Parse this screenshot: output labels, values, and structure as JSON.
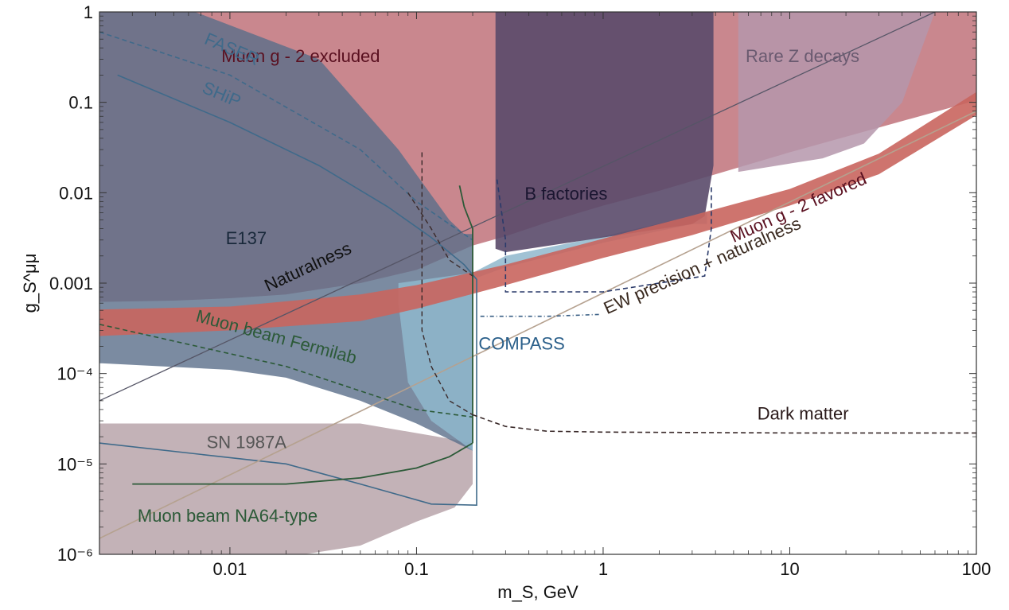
{
  "chart_data": {
    "type": "area",
    "title": "",
    "xlabel": "m_S, GeV",
    "ylabel": "g_S^μμ",
    "x_scale": "log",
    "y_scale": "log",
    "xlim": [
      0.002,
      100
    ],
    "ylim": [
      1e-06,
      1
    ],
    "grid": false,
    "x_ticks": [
      {
        "value": 0.01,
        "label": "0.01"
      },
      {
        "value": 0.1,
        "label": "0.1"
      },
      {
        "value": 1,
        "label": "1"
      },
      {
        "value": 10,
        "label": "10"
      },
      {
        "value": 100,
        "label": "100"
      }
    ],
    "y_ticks": [
      {
        "value": 1e-06,
        "label": "10⁻⁶"
      },
      {
        "value": 1e-05,
        "label": "10⁻⁵"
      },
      {
        "value": 0.0001,
        "label": "10⁻⁴"
      },
      {
        "value": 0.001,
        "label": "0.001"
      },
      {
        "value": 0.01,
        "label": "0.01"
      },
      {
        "value": 0.1,
        "label": "0.1"
      },
      {
        "value": 1,
        "label": "1"
      }
    ],
    "regions": [
      {
        "id": "sn1987a",
        "label": "SN 1987A",
        "color": "#b8a5aa",
        "opacity": 0.85,
        "points": [
          [
            0.002,
            2.8e-05
          ],
          [
            0.05,
            2.8e-05
          ],
          [
            0.13,
            2e-05
          ],
          [
            0.2,
            1.7e-05
          ],
          [
            0.2,
            6e-06
          ],
          [
            0.16,
            3.3e-06
          ],
          [
            0.1,
            2.3e-06
          ],
          [
            0.05,
            1.25e-06
          ],
          [
            0.025,
            1e-06
          ],
          [
            0.002,
            1e-06
          ]
        ]
      },
      {
        "id": "muon-g2-excluded",
        "label": "Muon g - 2 excluded",
        "color": "#c0727a",
        "opacity": 0.85,
        "points": [
          [
            0.002,
            1
          ],
          [
            100,
            1
          ],
          [
            100,
            0.105
          ],
          [
            40,
            0.062
          ],
          [
            10,
            0.028
          ],
          [
            4,
            0.016
          ],
          [
            2,
            0.0105
          ],
          [
            1,
            0.0072
          ],
          [
            0.5,
            0.0047
          ],
          [
            0.3,
            0.0033
          ],
          [
            0.2,
            0.0026
          ],
          [
            0.1,
            0.0014
          ],
          [
            0.05,
            0.001
          ],
          [
            0.02,
            0.00075
          ],
          [
            0.01,
            0.00068
          ],
          [
            0.005,
            0.00064
          ],
          [
            0.002,
            0.00062
          ]
        ]
      },
      {
        "id": "e137",
        "label": "E137",
        "color": "#5a6e8a",
        "opacity": 0.8,
        "points": [
          [
            0.002,
            1
          ],
          [
            0.0065,
            1
          ],
          [
            0.03,
            0.3
          ],
          [
            0.08,
            0.03
          ],
          [
            0.15,
            0.005
          ],
          [
            0.18,
            0.0035
          ],
          [
            0.2,
            0.0035
          ],
          [
            0.2,
            1.4e-05
          ],
          [
            0.1,
            2.8e-05
          ],
          [
            0.05,
            5e-05
          ],
          [
            0.02,
            9e-05
          ],
          [
            0.01,
            0.00011
          ],
          [
            0.002,
            0.00013
          ]
        ]
      },
      {
        "id": "compass-region",
        "label": "",
        "color": "#8fb7cc",
        "opacity": 0.85,
        "points": [
          [
            0.2,
            0.0013
          ],
          [
            0.3,
            0.002
          ],
          [
            1,
            0.0033
          ],
          [
            3,
            0.0055
          ],
          [
            3.6,
            0.006
          ],
          [
            3.6,
            0.0045
          ],
          [
            3,
            0.0045
          ],
          [
            1,
            0.0028
          ],
          [
            0.3,
            0.0015
          ],
          [
            0.2,
            0.0011
          ]
        ]
      },
      {
        "id": "compass-lower",
        "label": "",
        "color": "#8fb7cc",
        "opacity": 0.85,
        "points": [
          [
            0.08,
            0.001
          ],
          [
            0.2,
            0.0013
          ],
          [
            0.2,
            1.4e-05
          ],
          [
            0.12,
            3e-05
          ],
          [
            0.09,
            8e-05
          ],
          [
            0.08,
            0.0006
          ]
        ]
      },
      {
        "id": "b-factories",
        "label": "B factories",
        "color": "#5a4a6a",
        "opacity": 0.9,
        "points": [
          [
            0.265,
            1
          ],
          [
            3.9,
            1
          ],
          [
            3.9,
            0.02
          ],
          [
            3.5,
            0.0055
          ],
          [
            3,
            0.0045
          ],
          [
            1,
            0.0032
          ],
          [
            0.3,
            0.0022
          ],
          [
            0.265,
            0.0024
          ]
        ]
      },
      {
        "id": "rare-z",
        "label": "Rare Z decays",
        "color": "#b597ab",
        "opacity": 0.85,
        "points": [
          [
            5.3,
            1
          ],
          [
            60,
            1
          ],
          [
            40,
            0.1
          ],
          [
            25,
            0.035
          ],
          [
            15,
            0.024
          ],
          [
            5.3,
            0.017
          ]
        ]
      },
      {
        "id": "g2-favored",
        "label": "Muon g - 2 favored",
        "color": "#c9655e",
        "opacity": 0.9,
        "points": [
          [
            0.002,
            0.00051
          ],
          [
            0.01,
            0.00055
          ],
          [
            0.05,
            0.00075
          ],
          [
            0.1,
            0.00095
          ],
          [
            0.3,
            0.0016
          ],
          [
            1,
            0.0031
          ],
          [
            3,
            0.0056
          ],
          [
            10,
            0.011
          ],
          [
            30,
            0.027
          ],
          [
            100,
            0.13
          ],
          [
            100,
            0.072
          ],
          [
            30,
            0.016
          ],
          [
            10,
            0.0072
          ],
          [
            3,
            0.0034
          ],
          [
            1,
            0.0019
          ],
          [
            0.3,
            0.00095
          ],
          [
            0.1,
            0.00052
          ],
          [
            0.05,
            0.00038
          ],
          [
            0.01,
            0.0003
          ],
          [
            0.002,
            0.00026
          ]
        ]
      }
    ],
    "curves": [
      {
        "id": "faser",
        "label": "FASER",
        "color": "#3f6a8a",
        "dash": "6,4",
        "width": 1.6,
        "points": [
          [
            0.002,
            0.6
          ],
          [
            0.01,
            0.2
          ],
          [
            0.05,
            0.03
          ],
          [
            0.1,
            0.008
          ],
          [
            0.15,
            0.0045
          ],
          [
            0.2,
            0.003
          ]
        ]
      },
      {
        "id": "ship",
        "label": "SHiP",
        "color": "#3f6a8a",
        "dash": "",
        "width": 1.6,
        "points": [
          [
            0.0025,
            0.2
          ],
          [
            0.01,
            0.06
          ],
          [
            0.03,
            0.02
          ],
          [
            0.07,
            0.007
          ],
          [
            0.12,
            0.0032
          ],
          [
            0.18,
            0.0016
          ],
          [
            0.21,
            0.0011
          ],
          [
            0.21,
            3.5e-06
          ],
          [
            0.12,
            3.6e-06
          ],
          [
            0.05,
            6e-06
          ],
          [
            0.02,
            1e-05
          ],
          [
            0.002,
            1.7e-05
          ]
        ]
      },
      {
        "id": "naturalness",
        "label": "Naturalness",
        "color": "#555566",
        "dash": "",
        "width": 1.3,
        "points": [
          [
            0.002,
            5e-05
          ],
          [
            60,
            1
          ]
        ]
      },
      {
        "id": "ew-precision",
        "label": "EW precision + naturalness",
        "color": "#b5a18f",
        "dash": "",
        "width": 1.6,
        "points": [
          [
            0.002,
            1.5e-06
          ],
          [
            100,
            0.08
          ]
        ]
      },
      {
        "id": "fermilab",
        "label": "Muon beam Fermilab",
        "color": "#2c5a38",
        "dash": "6,4",
        "width": 1.6,
        "points": [
          [
            0.002,
            0.00035
          ],
          [
            0.02,
            0.00012
          ],
          [
            0.1,
            4e-05
          ],
          [
            0.2,
            3.3e-05
          ]
        ]
      },
      {
        "id": "na64-left",
        "label": "Muon beam NA64-type",
        "color": "#2c5a38",
        "dash": "",
        "width": 1.8,
        "points": [
          [
            0.003,
            6e-06
          ],
          [
            0.02,
            6e-06
          ],
          [
            0.05,
            7e-06
          ],
          [
            0.1,
            9e-06
          ],
          [
            0.15,
            1.2e-05
          ],
          [
            0.2,
            1.7e-05
          ]
        ]
      },
      {
        "id": "na64-right",
        "label": "",
        "color": "#2c5a38",
        "dash": "",
        "width": 1.8,
        "points": [
          [
            0.2,
            1.7e-05
          ],
          [
            0.2,
            0.004
          ],
          [
            0.18,
            0.007
          ],
          [
            0.17,
            0.012
          ]
        ]
      },
      {
        "id": "dark-matter",
        "label": "Dark matter",
        "color": "#3a2a2a",
        "dash": "6,4",
        "width": 1.6,
        "points": [
          [
            0.2,
            3.5e-05
          ],
          [
            0.3,
            2.6e-05
          ],
          [
            0.5,
            2.3e-05
          ],
          [
            1,
            2.25e-05
          ],
          [
            10,
            2.2e-05
          ],
          [
            100,
            2.2e-05
          ]
        ]
      },
      {
        "id": "dm-vert-1",
        "label": "",
        "color": "#3a2a2a",
        "dash": "6,4",
        "width": 1.4,
        "points": [
          [
            0.107,
            0.028
          ],
          [
            0.107,
            0.0003
          ],
          [
            0.12,
            0.00012
          ],
          [
            0.15,
            5e-05
          ],
          [
            0.2,
            3.5e-05
          ]
        ]
      },
      {
        "id": "dm-vert-2",
        "label": "",
        "color": "#3a2a2a",
        "dash": "6,4",
        "width": 1.4,
        "points": [
          [
            0.09,
            0.01
          ],
          [
            0.12,
            0.004
          ],
          [
            0.15,
            0.0018
          ],
          [
            0.2,
            0.0012
          ]
        ]
      },
      {
        "id": "b-fact-dashed",
        "label": "",
        "color": "#2a3a6a",
        "dash": "6,4",
        "width": 1.6,
        "points": [
          [
            0.27,
            0.014
          ],
          [
            0.3,
            0.003
          ],
          [
            0.3,
            0.0008
          ],
          [
            1,
            0.0008
          ],
          [
            3.5,
            0.0012
          ],
          [
            3.8,
            0.004
          ],
          [
            3.8,
            0.012
          ]
        ]
      },
      {
        "id": "compass-dashdot",
        "label": "COMPASS",
        "color": "#3a5f85",
        "dash": "5,3,1,3",
        "width": 1.6,
        "points": [
          [
            0.22,
            0.00043
          ],
          [
            0.5,
            0.00043
          ],
          [
            0.95,
            0.00045
          ]
        ]
      }
    ],
    "annotations": [
      {
        "text": "Muon g - 2 excluded",
        "x": 0.009,
        "y": 0.28,
        "color": "#5a1020"
      },
      {
        "text": "FASER",
        "x": 0.0072,
        "y": 0.45,
        "color": "#3f6a8a",
        "rotate": 23
      },
      {
        "text": "SHiP",
        "x": 0.007,
        "y": 0.13,
        "color": "#3f6a8a",
        "rotate": 23
      },
      {
        "text": "E137",
        "x": 0.0095,
        "y": 0.0027,
        "color": "#18283a"
      },
      {
        "text": "Naturalness",
        "x": 0.016,
        "y": 0.0008,
        "color": "#111111",
        "rotate": -25
      },
      {
        "text": "B factories",
        "x": 0.38,
        "y": 0.0084,
        "color": "#1a1530"
      },
      {
        "text": "Rare Z decays",
        "x": 5.8,
        "y": 0.28,
        "color": "#6a5a70"
      },
      {
        "text": "Muon g - 2 favored",
        "x": 5,
        "y": 0.0028,
        "color": "#5a1020",
        "rotate": -24
      },
      {
        "text": "EW precision + naturalness",
        "x": 1.05,
        "y": 0.00045,
        "color": "#3a2a20",
        "rotate": -24
      },
      {
        "text": "COMPASS",
        "x": 0.215,
        "y": 0.000185,
        "color": "#2a5f8a"
      },
      {
        "text": "Muon beam Fermilab",
        "x": 0.0065,
        "y": 0.00038,
        "color": "#2c5a38",
        "rotate": 15
      },
      {
        "text": "SN 1987A",
        "x": 0.0075,
        "y": 1.5e-05,
        "color": "#555555"
      },
      {
        "text": "Muon beam NA64-type",
        "x": 0.0032,
        "y": 2.3e-06,
        "color": "#2c5a38"
      },
      {
        "text": "Dark matter",
        "x": 6.7,
        "y": 3.1e-05,
        "color": "#2a1a1a"
      }
    ]
  }
}
